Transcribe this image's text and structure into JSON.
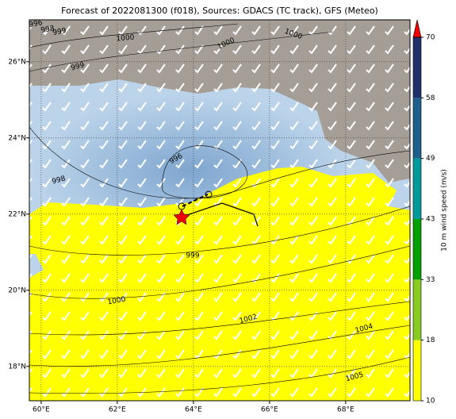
{
  "map": {
    "title": "Forecast of 2022081300 (f018), Sources: GDACS (TC track), GFS (Meteo)",
    "xlim": [
      59.69,
      69.69
    ],
    "ylim": [
      17.1,
      27.1
    ],
    "xticks": [
      {
        "value": 60,
        "label": "60°E"
      },
      {
        "value": 62,
        "label": "62°E"
      },
      {
        "value": 64,
        "label": "64°E"
      },
      {
        "value": 66,
        "label": "66°E"
      },
      {
        "value": 68,
        "label": "68°E"
      }
    ],
    "yticks": [
      {
        "value": 18,
        "label": "18°N"
      },
      {
        "value": 20,
        "label": "20°N"
      },
      {
        "value": 22,
        "label": "22°N"
      },
      {
        "value": 24,
        "label": "24°N"
      },
      {
        "value": 26,
        "label": "26°N"
      }
    ],
    "grid": true,
    "contour_labels": [
      996,
      998,
      999,
      1000,
      1000,
      1000,
      999,
      998,
      996,
      999,
      1000,
      1002,
      1004,
      1005
    ],
    "colorbar": {
      "label": "10 m wind speed (m/s)",
      "ticks": [
        10,
        18,
        33,
        43,
        49,
        58,
        70
      ],
      "colors": [
        "#ffff00",
        "#88cc22",
        "#00a000",
        "#009a9a",
        "#1f5f8b",
        "#20306a"
      ],
      "extend_color": "#ee0000"
    }
  }
}
